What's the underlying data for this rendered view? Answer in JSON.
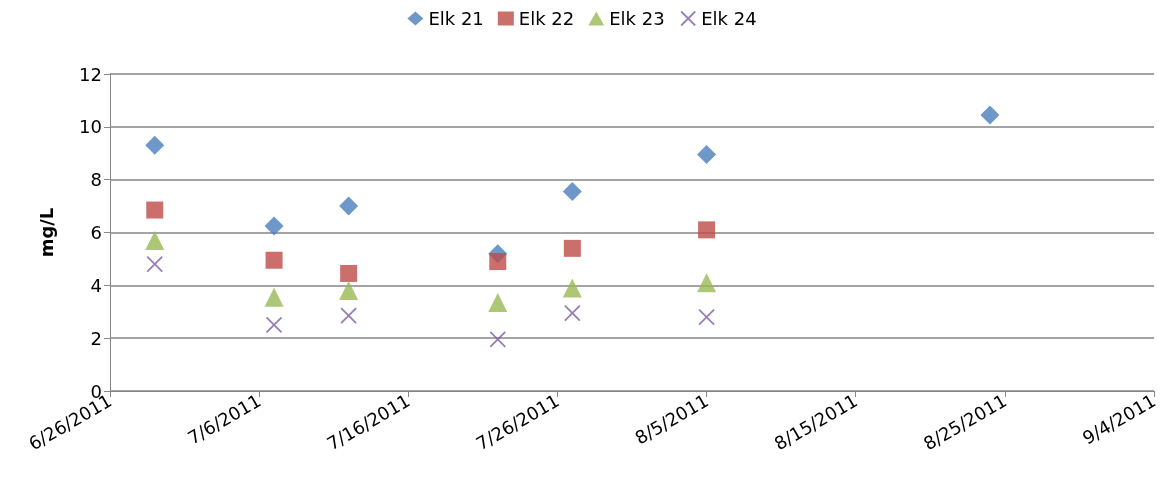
{
  "chart_data": {
    "type": "scatter",
    "ylabel": "mg/L",
    "x": [
      "2011-06-29",
      "2011-07-07",
      "2011-07-12",
      "2011-07-22",
      "2011-07-27",
      "2011-08-05",
      "2011-08-24"
    ],
    "series": [
      {
        "name": "Elk 21",
        "color": "#4a7ebb",
        "marker": "diamond",
        "values": [
          9.3,
          6.25,
          7.0,
          5.2,
          7.55,
          8.95,
          10.45
        ]
      },
      {
        "name": "Elk 22",
        "color": "#be4b48",
        "marker": "square",
        "values": [
          6.85,
          4.95,
          4.45,
          4.9,
          5.4,
          6.1,
          null
        ]
      },
      {
        "name": "Elk 23",
        "color": "#98b954",
        "marker": "triangle",
        "values": [
          5.7,
          3.55,
          3.8,
          3.35,
          3.9,
          4.1,
          null
        ]
      },
      {
        "name": "Elk 24",
        "color": "#7d5fa0",
        "marker": "cross",
        "values": [
          4.8,
          2.5,
          2.85,
          1.95,
          2.95,
          2.8,
          null
        ]
      }
    ],
    "xlim": [
      "2011-06-26",
      "2011-09-04"
    ],
    "xticks": [
      {
        "value": "2011-06-26",
        "label": "6/26/2011"
      },
      {
        "value": "2011-07-06",
        "label": "7/6/2011"
      },
      {
        "value": "2011-07-16",
        "label": "7/16/2011"
      },
      {
        "value": "2011-07-26",
        "label": "7/26/2011"
      },
      {
        "value": "2011-08-05",
        "label": "8/5/2011"
      },
      {
        "value": "2011-08-15",
        "label": "8/15/2011"
      },
      {
        "value": "2011-08-25",
        "label": "8/25/2011"
      },
      {
        "value": "2011-09-04",
        "label": "9/4/2011"
      }
    ],
    "ylim": [
      0,
      12
    ],
    "yticks": [
      0,
      2,
      4,
      6,
      8,
      10,
      12
    ],
    "grid": "y",
    "legend": "top"
  }
}
